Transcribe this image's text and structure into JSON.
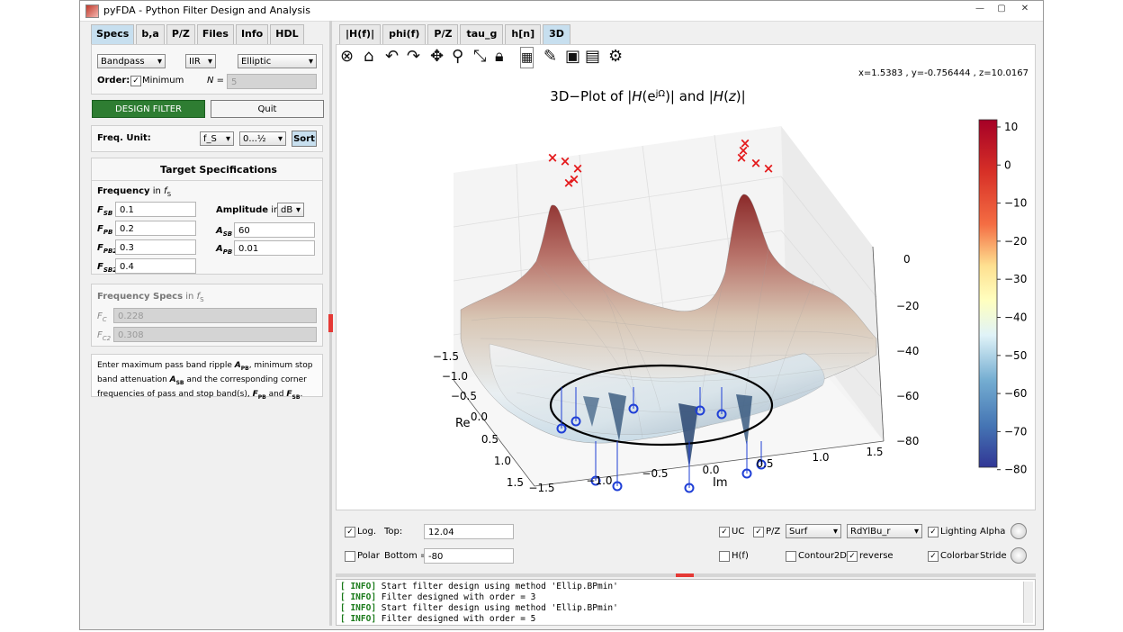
{
  "window": {
    "title": "pyFDA - Python Filter Design and Analysis",
    "controls": [
      "—",
      "▢",
      "✕"
    ]
  },
  "left": {
    "tabs": [
      "Specs",
      "b,a",
      "P/Z",
      "Files",
      "Info",
      "HDL"
    ],
    "response_type": "Bandpass",
    "filter_type": "IIR",
    "design_method": "Elliptic",
    "order_label": "Order:",
    "minimum_label": "Minimum",
    "order_n_label": "N =",
    "order_value": "5",
    "design_button": "DESIGN FILTER",
    "quit_button": "Quit",
    "freq_unit_label": "Freq. Unit:",
    "freq_unit_value": "f_S",
    "freq_range_value": "0...½",
    "sort_button": "Sort",
    "target_title": "Target Specifications",
    "frequency_label": "Frequency",
    "in_label": "in",
    "fs_label": "f",
    "fs_sub": "S",
    "freq_specs": [
      {
        "name": "F",
        "sub": "SB",
        "value": "0.1"
      },
      {
        "name": "F",
        "sub": "PB",
        "value": "0.2"
      },
      {
        "name": "F",
        "sub": "PB2",
        "value": "0.3"
      },
      {
        "name": "F",
        "sub": "SB2",
        "value": "0.4"
      }
    ],
    "amplitude_label": "Amplitude",
    "amp_unit": "dB",
    "amp_specs": [
      {
        "name": "A",
        "sub": "SB",
        "value": "60"
      },
      {
        "name": "A",
        "sub": "PB",
        "value": "0.01"
      }
    ],
    "freq_specs_title": "Frequency Specs",
    "corner_specs": [
      {
        "name": "F",
        "sub": "C",
        "value": "0.228"
      },
      {
        "name": "F",
        "sub": "C2",
        "value": "0.308"
      }
    ],
    "help_text": [
      [
        "Enter maximum pass band ripple ",
        "A",
        "PB",
        ", minimum stop"
      ],
      [
        "band attenuation ",
        "A",
        "SB",
        " and the corresponding corner"
      ],
      [
        "frequencies of pass and stop band(s), ",
        "F",
        "PB",
        " and ",
        "F",
        "SB",
        "."
      ]
    ]
  },
  "right": {
    "tabs": [
      "|H(f)|",
      "phi(f)",
      "P/Z",
      "tau_g",
      "h[n]",
      "3D"
    ],
    "toolbar_icons": [
      "close-icon",
      "home-icon",
      "undo-icon",
      "redo-icon",
      "pan-icon",
      "zoom-icon",
      "zoom-full-icon",
      "lock-icon",
      "grid-icon",
      "brush-icon",
      "save-icon",
      "clipboard-icon",
      "settings-icon"
    ],
    "coords": "x=1.5383     , y=-0.756444    , z=10.0167",
    "plot_title_a": "3D−Plot of |",
    "plot_title_b": "H",
    "plot_title_c": "(e",
    "plot_title_d": "jΩ",
    "plot_title_e": ")| and |",
    "plot_title_f": "H",
    "plot_title_g": "(",
    "plot_title_h": "z",
    "plot_title_i": ")|",
    "re_label": "Re",
    "im_label": "Im",
    "re_ticks": [
      "−1.5",
      "−1.0",
      "−0.5",
      "0.0",
      "0.5",
      "1.0",
      "1.5"
    ],
    "im_ticks": [
      "−1.5",
      "−1.0",
      "−0.5",
      "0.0",
      "0.5",
      "1.0",
      "1.5"
    ],
    "z_ticks": [
      "0",
      "−20",
      "−40",
      "−60",
      "−80"
    ],
    "colorbar_ticks": [
      "10",
      "0",
      "−10",
      "−20",
      "−30",
      "−40",
      "−50",
      "−60",
      "−70",
      "−80"
    ],
    "colors": {
      "high": "#b2182b",
      "mid": "#ffffbf",
      "low": "#2166ac",
      "poles": "#e41a1c",
      "zeros": "#1f3fd6"
    },
    "controls": {
      "log_label": "Log.",
      "top_label": "Top:",
      "top_value": "12.04",
      "polar_label": "Polar",
      "bottom_label": "Bottom =",
      "bottom_value": "-80",
      "uc_label": "UC",
      "pz_label": "P/Z",
      "plot_type": "Surf",
      "colormap": "RdYlBu_r",
      "lighting_label": "Lighting",
      "alpha_label": "Alpha",
      "hf_label": "H(f)",
      "contour_label": "Contour2D",
      "reverse_label": "reverse",
      "colorbar_label": "Colorbar",
      "stride_label": "Stride"
    },
    "log_lines": [
      {
        "tag": "[ INFO]",
        "text": " Start filter design using method 'Ellip.BPmin'"
      },
      {
        "tag": "[ INFO]",
        "text": " Filter designed with order = 3"
      },
      {
        "tag": "[ INFO]",
        "text": " Start filter design using method 'Ellip.BPmin'"
      },
      {
        "tag": "[ INFO]",
        "text": " Filter designed with order = 5"
      }
    ]
  }
}
